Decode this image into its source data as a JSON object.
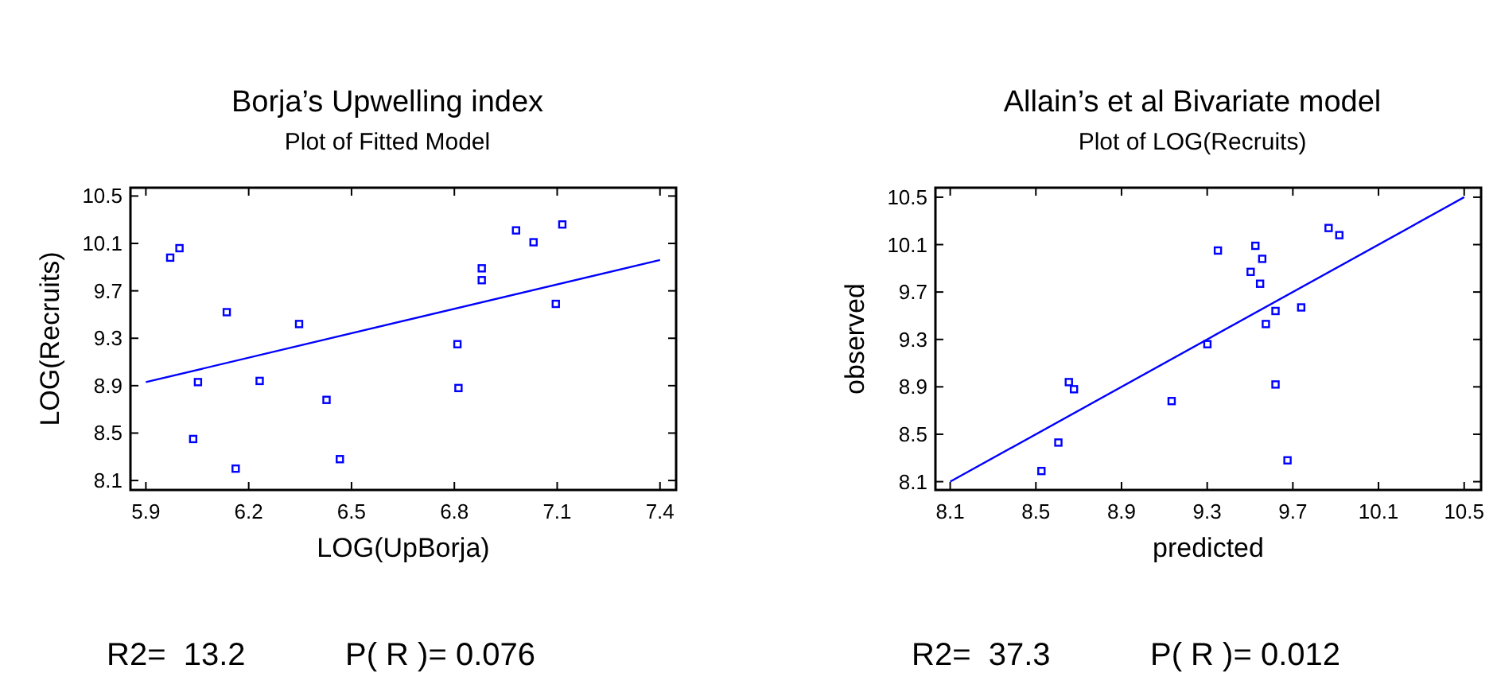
{
  "chart_data": [
    {
      "type": "scatter",
      "title": "Borja’s Upwelling index",
      "subtitle": "Plot of Fitted Model",
      "xlabel": "LOG(UpBorja)",
      "ylabel": "LOG(Recruits)",
      "xlim": [
        5.855,
        7.447
      ],
      "ylim": [
        8.02,
        10.57
      ],
      "xticks": [
        5.9,
        6.2,
        6.5,
        6.8,
        7.1,
        7.4
      ],
      "yticks": [
        8.1,
        8.5,
        8.9,
        9.3,
        9.7,
        10.1,
        10.5
      ],
      "series": [
        {
          "marker": "square",
          "color": "#0000ff",
          "x": [
            5.971,
            5.998,
            6.052,
            6.038,
            6.136,
            6.162,
            6.232,
            6.347,
            6.427,
            6.466,
            6.809,
            6.812,
            6.88,
            6.88,
            6.98,
            7.031,
            7.096,
            7.115
          ],
          "values": [
            9.98,
            10.06,
            8.93,
            8.45,
            9.52,
            8.2,
            8.94,
            9.42,
            8.78,
            8.28,
            9.25,
            8.88,
            9.89,
            9.79,
            10.21,
            10.11,
            9.59,
            10.26
          ]
        },
        {
          "type": "line",
          "marker": "none",
          "color": "#0000ff",
          "x": [
            5.9,
            7.4
          ],
          "values": [
            8.93,
            9.96
          ]
        }
      ],
      "annotations": [
        "R2=  13.2",
        "P( R )= 0.076"
      ]
    },
    {
      "type": "scatter",
      "title": "Allain’s et al Bivariate model",
      "subtitle": "Plot of LOG(Recruits)",
      "xlabel": "predicted",
      "ylabel": "observed",
      "xlim": [
        8.031,
        10.579
      ],
      "ylim": [
        8.03,
        10.58
      ],
      "xticks": [
        8.1,
        8.5,
        8.9,
        9.3,
        9.7,
        10.1,
        10.5
      ],
      "yticks": [
        8.1,
        8.5,
        8.9,
        9.3,
        9.7,
        10.1,
        10.5
      ],
      "series": [
        {
          "marker": "square",
          "color": "#0000ff",
          "x": [
            8.526,
            8.605,
            8.654,
            8.678,
            9.134,
            9.301,
            9.35,
            9.503,
            9.525,
            9.547,
            9.557,
            9.574,
            9.619,
            9.619,
            9.675,
            9.739,
            9.867,
            9.917
          ],
          "values": [
            8.19,
            8.43,
            8.94,
            8.88,
            8.78,
            9.26,
            10.05,
            9.87,
            10.09,
            9.77,
            9.98,
            9.43,
            9.54,
            8.92,
            8.28,
            9.57,
            10.24,
            10.18
          ]
        },
        {
          "type": "line",
          "marker": "none",
          "color": "#0000ff",
          "x": [
            8.1,
            10.5
          ],
          "values": [
            8.1,
            10.5
          ]
        }
      ],
      "annotations": [
        "R2=  37.3",
        "P( R )= 0.012"
      ]
    }
  ]
}
